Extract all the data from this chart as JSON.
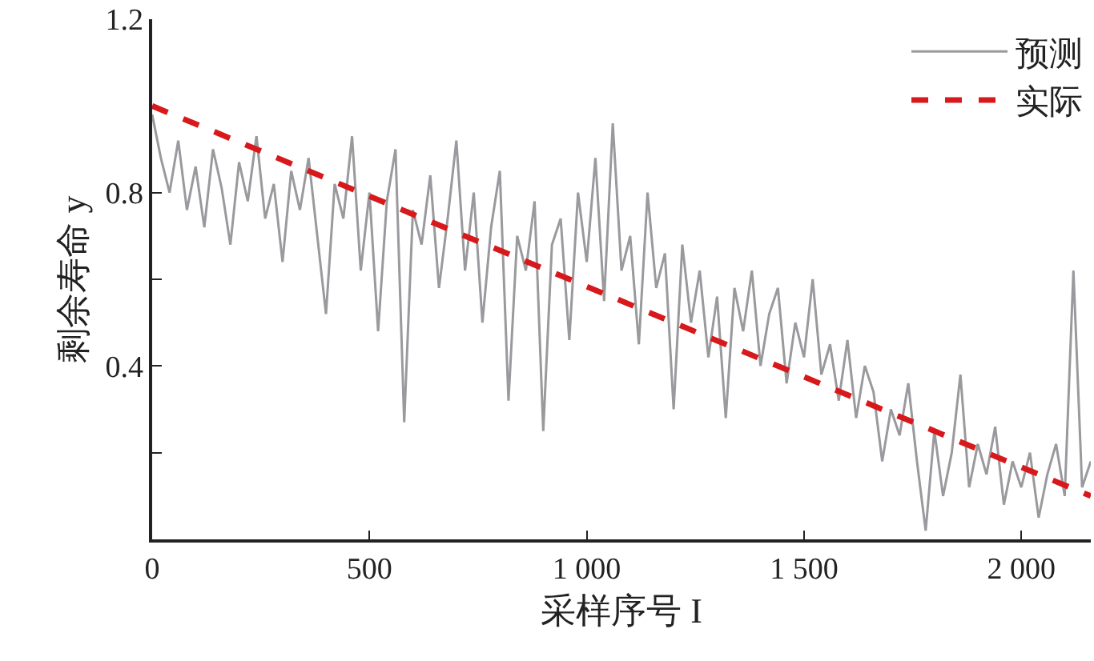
{
  "chart_data": {
    "type": "line",
    "xlabel": "采样序号 I",
    "ylabel": "剩余寿命 y",
    "xlim": [
      0,
      2160
    ],
    "xticks": [
      0,
      500,
      {
        "value": 1000,
        "label": "1 000"
      },
      {
        "value": 1500,
        "label": "1 500"
      },
      {
        "value": 2000,
        "label": "2 000"
      }
    ],
    "ylim": [
      0,
      1.2
    ],
    "yticks": [
      {
        "value": 0.2,
        "label": null
      },
      0.4,
      {
        "value": 0.6,
        "label": null
      },
      0.8,
      {
        "value": 1.2,
        "label": "1.2"
      }
    ],
    "grid": false,
    "legend": "top right",
    "series": [
      {
        "name": "预测",
        "color": "#9a9a9e",
        "line_style": "solid",
        "x": [
          0,
          20,
          40,
          60,
          80,
          100,
          120,
          140,
          160,
          180,
          200,
          220,
          240,
          260,
          280,
          300,
          320,
          340,
          360,
          380,
          400,
          420,
          440,
          460,
          480,
          500,
          520,
          540,
          560,
          580,
          600,
          620,
          640,
          660,
          680,
          700,
          720,
          740,
          760,
          780,
          800,
          820,
          840,
          860,
          880,
          900,
          920,
          940,
          960,
          980,
          1000,
          1020,
          1040,
          1060,
          1080,
          1100,
          1120,
          1140,
          1160,
          1180,
          1200,
          1220,
          1240,
          1260,
          1280,
          1300,
          1320,
          1340,
          1360,
          1380,
          1400,
          1420,
          1440,
          1460,
          1480,
          1500,
          1520,
          1540,
          1560,
          1580,
          1600,
          1620,
          1640,
          1660,
          1680,
          1700,
          1720,
          1740,
          1760,
          1780,
          1800,
          1820,
          1840,
          1860,
          1880,
          1900,
          1920,
          1940,
          1960,
          1980,
          2000,
          2020,
          2040,
          2060,
          2080,
          2100,
          2120,
          2140,
          2160
        ],
        "values": [
          0.98,
          0.88,
          0.8,
          0.92,
          0.76,
          0.86,
          0.72,
          0.9,
          0.81,
          0.68,
          0.87,
          0.78,
          0.93,
          0.74,
          0.82,
          0.64,
          0.85,
          0.76,
          0.88,
          0.7,
          0.52,
          0.82,
          0.74,
          0.93,
          0.62,
          0.8,
          0.48,
          0.78,
          0.9,
          0.27,
          0.76,
          0.68,
          0.84,
          0.58,
          0.74,
          0.92,
          0.62,
          0.8,
          0.5,
          0.72,
          0.85,
          0.32,
          0.7,
          0.62,
          0.78,
          0.25,
          0.68,
          0.74,
          0.46,
          0.8,
          0.64,
          0.88,
          0.55,
          0.96,
          0.62,
          0.7,
          0.45,
          0.8,
          0.58,
          0.66,
          0.3,
          0.68,
          0.5,
          0.62,
          0.42,
          0.56,
          0.28,
          0.58,
          0.48,
          0.62,
          0.4,
          0.52,
          0.58,
          0.36,
          0.5,
          0.42,
          0.6,
          0.38,
          0.45,
          0.32,
          0.46,
          0.28,
          0.4,
          0.34,
          0.18,
          0.3,
          0.24,
          0.36,
          0.18,
          0.02,
          0.25,
          0.1,
          0.2,
          0.38,
          0.12,
          0.22,
          0.15,
          0.26,
          0.08,
          0.18,
          0.12,
          0.2,
          0.05,
          0.15,
          0.22,
          0.1,
          0.62,
          0.12,
          0.18
        ]
      },
      {
        "name": "实际",
        "color": "#d7191c",
        "line_style": "dashed",
        "x": [
          0,
          2160
        ],
        "values": [
          1.0,
          0.1
        ]
      }
    ]
  }
}
